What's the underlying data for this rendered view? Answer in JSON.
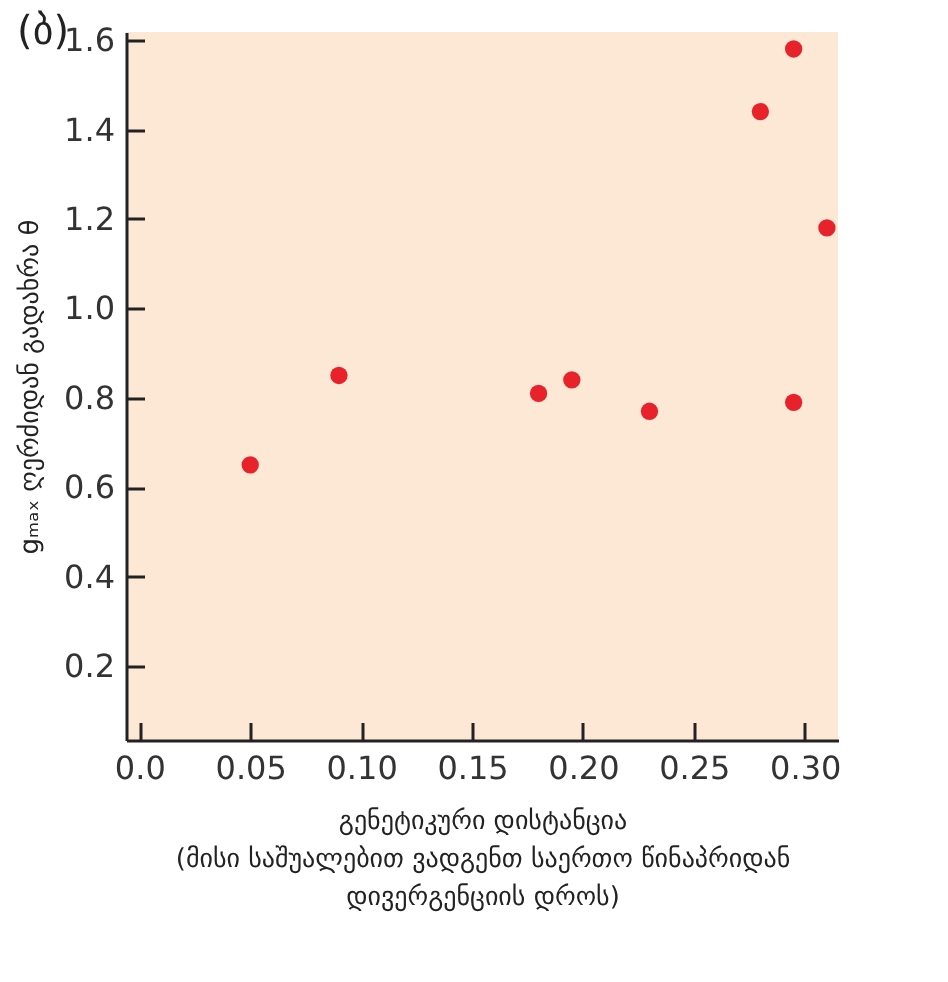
{
  "chart_data": {
    "type": "scatter",
    "title": "(ბ)",
    "xlabel": "გენეტიკური დისტანცია\n(მისი საშუალებით ვადგენთ საერთო წინაპრიდან\nდივერგენციის დროს)",
    "ylabel": "gₘₐₓ ღერძიდან გადახრა θ",
    "x": [
      0.05,
      0.09,
      0.18,
      0.195,
      0.23,
      0.28,
      0.295,
      0.295,
      0.31
    ],
    "series": [
      {
        "color": "#e8222a",
        "values": [
          0.65,
          0.85,
          0.81,
          0.84,
          0.77,
          1.44,
          1.58,
          0.79,
          1.18
        ]
      }
    ],
    "xlim": [
      -0.006,
      0.315
    ],
    "xticks": [
      {
        "value": 0,
        "label": "0.0"
      },
      0.05,
      {
        "value": 0.1,
        "label": "0.10"
      },
      0.15,
      {
        "value": 0.2,
        "label": "0.20"
      },
      0.25,
      {
        "value": 0.3,
        "label": "0.30"
      }
    ],
    "ylim": [
      0.035,
      1.618
    ],
    "yticks": [
      0.2,
      0.4,
      0.6,
      0.8,
      {
        "value": 1,
        "label": "1.0"
      },
      1.2,
      1.4,
      1.6
    ],
    "grid": false
  }
}
